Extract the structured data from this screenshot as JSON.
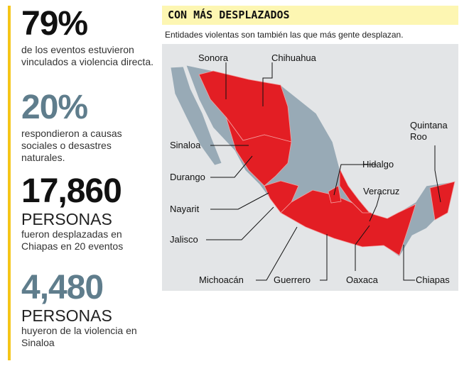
{
  "stats": [
    {
      "number": "79%",
      "description": "de los eventos estuvieron vinculados a violencia directa."
    },
    {
      "number": "20%",
      "description": "respondieron a causas sociales o desastres naturales."
    },
    {
      "number": "17,860",
      "unit": "PERSONAS",
      "description": "fueron desplazadas en Chiapas en 20 eventos"
    },
    {
      "number": "4,480",
      "unit": "PERSONAS",
      "description": "huyeron de la violencia en Sinaloa"
    }
  ],
  "map": {
    "title": "CON MÁS DESPLAZADOS",
    "subtitle": "Entidades violentas son también las que más gente desplazan.",
    "labels": [
      "Sonora",
      "Chihuahua",
      "Sinaloa",
      "Durango",
      "Nayarit",
      "Jalisco",
      "Michoacán",
      "Guerrero",
      "Oaxaca",
      "Chiapas",
      "Hidalgo",
      "Veracruz",
      "Quintana Roo"
    ]
  }
}
